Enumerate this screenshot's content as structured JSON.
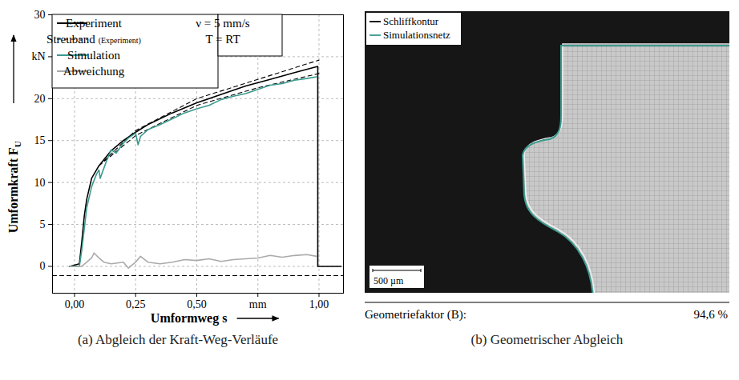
{
  "chart_data": {
    "type": "line",
    "x_label": {
      "text": "Umformweg s"
    },
    "y_label": {
      "text": "Umformkraft F",
      "sub": "U"
    },
    "xlim": [
      -0.09,
      1.1
    ],
    "ylim": [
      -3.2,
      30
    ],
    "xticks": [
      {
        "value": 0,
        "label": "0,00"
      },
      {
        "value": 0.25,
        "label": "0,25"
      },
      {
        "value": 0.5,
        "label": "0,50"
      },
      {
        "value": 0.75,
        "label": "mm"
      },
      {
        "value": 1,
        "label": "1,00"
      }
    ],
    "yticks": [
      0,
      5,
      10,
      15,
      20,
      {
        "value": 25,
        "label": "kN"
      },
      30
    ],
    "grid": true,
    "legend": "top-left",
    "annotations": [
      "ν = 5 mm/s",
      "T = RT"
    ],
    "caption": "(a) Abgleich der Kraft-Weg-Verläufe",
    "series": [
      {
        "name": "Experiment",
        "color": "#000000",
        "line_style": "solid",
        "x": [
          -0.02,
          0.02,
          0.03,
          0.04,
          0.05,
          0.07,
          0.1,
          0.15,
          0.2,
          0.25,
          0.3,
          0.4,
          0.5,
          0.6,
          0.7,
          0.8,
          0.9,
          0.995,
          0.995,
          1.09
        ],
        "values": [
          0,
          0.3,
          3,
          6,
          8,
          10.5,
          12,
          13.8,
          15,
          16,
          16.9,
          18.3,
          19.5,
          20.5,
          21.5,
          22.3,
          23.1,
          23.85,
          0,
          0
        ]
      },
      {
        "name": "Streuband (Experiment)",
        "color": "#000000",
        "line_style": "dashed",
        "x": [
          0.1,
          0.25,
          0.5,
          0.75,
          1.0,
          null,
          0.1,
          0.25,
          0.5,
          0.75,
          1.0,
          null,
          -0.09,
          1.1
        ],
        "values": [
          12,
          16.2,
          20,
          22.3,
          24.6,
          null,
          12,
          15.6,
          19.2,
          21.3,
          23.0,
          null,
          -1.1,
          -1.1
        ]
      },
      {
        "name": "Simulation",
        "color": "#3a9a8e",
        "line_style": "solid",
        "x": [
          -0.02,
          0.02,
          0.03,
          0.05,
          0.07,
          0.09,
          0.1,
          0.105,
          0.13,
          0.15,
          0.17,
          0.2,
          0.22,
          0.25,
          0.26,
          0.27,
          0.3,
          0.35,
          0.4,
          0.45,
          0.5,
          0.55,
          0.6,
          0.65,
          0.7,
          0.75,
          0.8,
          0.85,
          0.9,
          0.95,
          0.99
        ],
        "values": [
          0,
          0,
          2,
          7,
          9.5,
          11,
          11.5,
          10.5,
          12.5,
          13.9,
          13.5,
          14.7,
          15.3,
          15.9,
          14.5,
          15.5,
          16.3,
          16.9,
          17.6,
          18.3,
          18.8,
          19.2,
          19.9,
          20.3,
          20.6,
          21.1,
          21.6,
          21.8,
          22.2,
          22.4,
          22.6
        ]
      },
      {
        "name": "Abweichung",
        "color": "#aaaaaa",
        "line_style": "solid",
        "x": [
          -0.02,
          0.03,
          0.05,
          0.07,
          0.08,
          0.1,
          0.12,
          0.15,
          0.2,
          0.22,
          0.25,
          0.27,
          0.3,
          0.35,
          0.4,
          0.45,
          0.5,
          0.55,
          0.6,
          0.65,
          0.7,
          0.75,
          0.8,
          0.85,
          0.9,
          0.95,
          0.99
        ],
        "values": [
          0,
          0,
          0.5,
          1.0,
          1.6,
          1.0,
          0.5,
          0.3,
          0.5,
          -0.2,
          0.5,
          1.2,
          0.5,
          0.3,
          0.5,
          0.8,
          0.7,
          0.9,
          0.6,
          0.8,
          0.9,
          1.0,
          1.3,
          1.1,
          1.3,
          1.4,
          1.2
        ]
      }
    ]
  },
  "image_panel": {
    "legend": [
      {
        "name": "Schliffkontur",
        "color": "#000000"
      },
      {
        "name": "Simulationsnetz",
        "color": "#3a9a8e"
      }
    ],
    "scale_bar": "500 µm",
    "geometry_factor": {
      "label": "Geometriefaktor (B):",
      "value_label": "94,6 %"
    },
    "caption": "(b) Geometrischer Abgleich"
  }
}
